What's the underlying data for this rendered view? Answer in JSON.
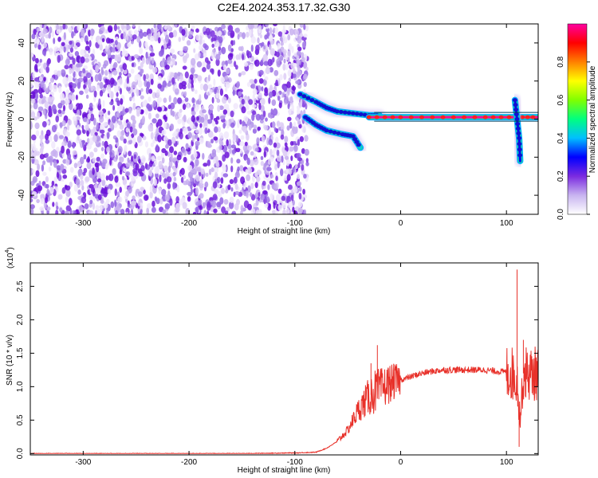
{
  "title": "C2E4.2024.353.17.32.G30",
  "chart_data": [
    {
      "type": "heatmap",
      "title": "C2E4.2024.353.17.32.G30",
      "xlabel": "Height of straight line (km)",
      "ylabel": "Frequency (Hz)",
      "xlim": [
        -350,
        130
      ],
      "ylim": [
        -50,
        50
      ],
      "xticks": [
        -300,
        -200,
        -100,
        0,
        100
      ],
      "yticks": [
        -40,
        -20,
        0,
        20,
        40
      ],
      "colorbar": {
        "label": "Normalized spectral amplitude",
        "range": [
          0,
          1
        ],
        "ticks": [
          "0.0",
          "0.2",
          "0.4",
          "0.6",
          "0.8"
        ],
        "colors": [
          "#ffffff",
          "#c8b4f0",
          "#7b2be0",
          "#0000ff",
          "#00bfff",
          "#00ff80",
          "#80ff00",
          "#ffff00",
          "#ff8000",
          "#ff0000",
          "#ff00a0"
        ]
      },
      "features": [
        {
          "name": "broadband noise",
          "x_range": [
            -350,
            -88
          ],
          "y_range": [
            -50,
            50
          ],
          "amplitude": 0.12
        },
        {
          "name": "upper branch",
          "points": [
            [
              -95,
              13
            ],
            [
              -80,
              9
            ],
            [
              -70,
              6
            ],
            [
              -60,
              4
            ],
            [
              -45,
              3
            ],
            [
              -30,
              2
            ],
            [
              -20,
              2
            ]
          ],
          "amplitude": 0.35
        },
        {
          "name": "lower branch",
          "points": [
            [
              -90,
              1
            ],
            [
              -80,
              -3
            ],
            [
              -70,
              -6
            ],
            [
              -55,
              -8
            ],
            [
              -45,
              -9
            ],
            [
              -38,
              -15
            ]
          ],
          "amplitude": 0.4
        },
        {
          "name": "main line",
          "points": [
            [
              -30,
              1
            ],
            [
              0,
              1
            ],
            [
              40,
              1
            ],
            [
              80,
              1
            ],
            [
              110,
              1
            ],
            [
              130,
              1
            ]
          ],
          "amplitude": 0.95
        },
        {
          "name": "tail",
          "points": [
            [
              108,
              10
            ],
            [
              110,
              0
            ],
            [
              112,
              -10
            ],
            [
              113,
              -22
            ]
          ],
          "amplitude": 0.3
        }
      ]
    },
    {
      "type": "line",
      "xlabel": "Height of straight line (km)",
      "ylabel": "SNR (10 * v/v)",
      "ylabel_scale": "(x10",
      "ylabel_exponent": "4",
      "xlim": [
        -350,
        130
      ],
      "ylim": [
        -0.02,
        2.85
      ],
      "xticks": [
        -300,
        -200,
        -100,
        0,
        100
      ],
      "yticks": [
        "0.0",
        "0.5",
        "1.0",
        "1.5",
        "2.0",
        "2.5"
      ],
      "color": "#e8312a",
      "x": [
        -350,
        -300,
        -250,
        -200,
        -150,
        -100,
        -80,
        -70,
        -60,
        -50,
        -45,
        -40,
        -35,
        -30,
        -25,
        -20,
        -15,
        -10,
        -5,
        0,
        10,
        20,
        30,
        40,
        50,
        60,
        70,
        80,
        90,
        100,
        105,
        110,
        113,
        116,
        120,
        125,
        130
      ],
      "values": [
        0.0,
        0.0,
        0.0,
        0.0,
        0.0,
        0.01,
        0.02,
        0.08,
        0.18,
        0.35,
        0.5,
        0.65,
        0.75,
        0.85,
        0.92,
        0.95,
        1.0,
        1.05,
        1.08,
        1.1,
        1.15,
        1.2,
        1.23,
        1.25,
        1.25,
        1.25,
        1.25,
        1.25,
        1.23,
        1.22,
        1.2,
        1.1,
        0.5,
        1.2,
        1.2,
        1.18,
        1.22
      ],
      "peaks": [
        {
          "x": -22,
          "y": 1.62
        },
        {
          "x": -28,
          "y": 1.35
        },
        {
          "x": 110,
          "y": 2.75
        },
        {
          "x": 112,
          "y": 0.1
        },
        {
          "x": 116,
          "y": 1.7
        }
      ]
    }
  ]
}
